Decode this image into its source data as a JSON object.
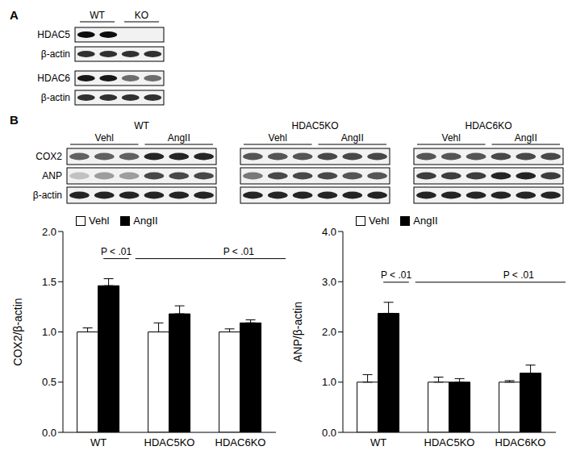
{
  "panels": [
    {
      "label": "A",
      "columns": [
        "WT",
        "KO"
      ],
      "rows": [
        "HDAC5",
        "β-actin",
        "HDAC6",
        "β-actin"
      ]
    },
    {
      "label": "B",
      "rows": [
        "COX2",
        "ANP",
        "β-actin"
      ],
      "conditions": [
        "Vehl",
        "AngII"
      ],
      "groups": [
        "WT",
        "HDAC5KO",
        "HDAC6KO"
      ]
    }
  ],
  "chart_data": [
    {
      "type": "bar",
      "ylabel": "COX2/β-actin",
      "categories": [
        "WT",
        "HDAC5KO",
        "HDAC6KO"
      ],
      "series": [
        {
          "name": "Vehl",
          "color": "#ffffff",
          "values": [
            1.0,
            1.0,
            1.0
          ],
          "errors": [
            0.04,
            0.09,
            0.03
          ]
        },
        {
          "name": "AngII",
          "color": "#000000",
          "values": [
            1.46,
            1.18,
            1.09
          ],
          "errors": [
            0.07,
            0.08,
            0.03
          ]
        }
      ],
      "ylim": [
        0,
        2
      ],
      "yticks": [
        {
          "value": 0,
          "label": "0.0"
        },
        0.5,
        {
          "value": 1,
          "label": "1.0"
        },
        1.5,
        {
          "value": 2,
          "label": "2.0"
        }
      ],
      "legend": "top-left",
      "annotations": [
        {
          "text": "P < .01",
          "from": {
            "category": "WT",
            "series": "Vehl"
          },
          "to": {
            "category": "WT",
            "series": "AngII"
          }
        },
        {
          "text": "P < .01",
          "from": {
            "category": "WT",
            "series": "AngII"
          },
          "to": {
            "category": "HDAC6KO",
            "series": "AngII"
          }
        }
      ]
    },
    {
      "type": "bar",
      "ylabel": "ANP/β-actin",
      "categories": [
        "WT",
        "HDAC5KO",
        "HDAC6KO"
      ],
      "series": [
        {
          "name": "Vehl",
          "color": "#ffffff",
          "values": [
            1.0,
            1.0,
            1.0
          ],
          "errors": [
            0.15,
            0.1,
            0.03
          ]
        },
        {
          "name": "AngII",
          "color": "#000000",
          "values": [
            2.37,
            1.0,
            1.18
          ],
          "errors": [
            0.22,
            0.07,
            0.16
          ]
        }
      ],
      "ylim": [
        0,
        4
      ],
      "yticks": [
        {
          "value": 0,
          "label": "0.0"
        },
        {
          "value": 1,
          "label": "1.0"
        },
        {
          "value": 2,
          "label": "2.0"
        },
        {
          "value": 3,
          "label": "3.0"
        },
        {
          "value": 4,
          "label": "4.0"
        }
      ],
      "legend": "top-left",
      "annotations": [
        {
          "text": "P < .01",
          "from": {
            "category": "WT",
            "series": "Vehl"
          },
          "to": {
            "category": "WT",
            "series": "AngII"
          }
        },
        {
          "text": "P < .01",
          "from": {
            "category": "WT",
            "series": "AngII"
          },
          "to": {
            "category": "HDAC6KO",
            "series": "AngII"
          }
        }
      ]
    }
  ]
}
